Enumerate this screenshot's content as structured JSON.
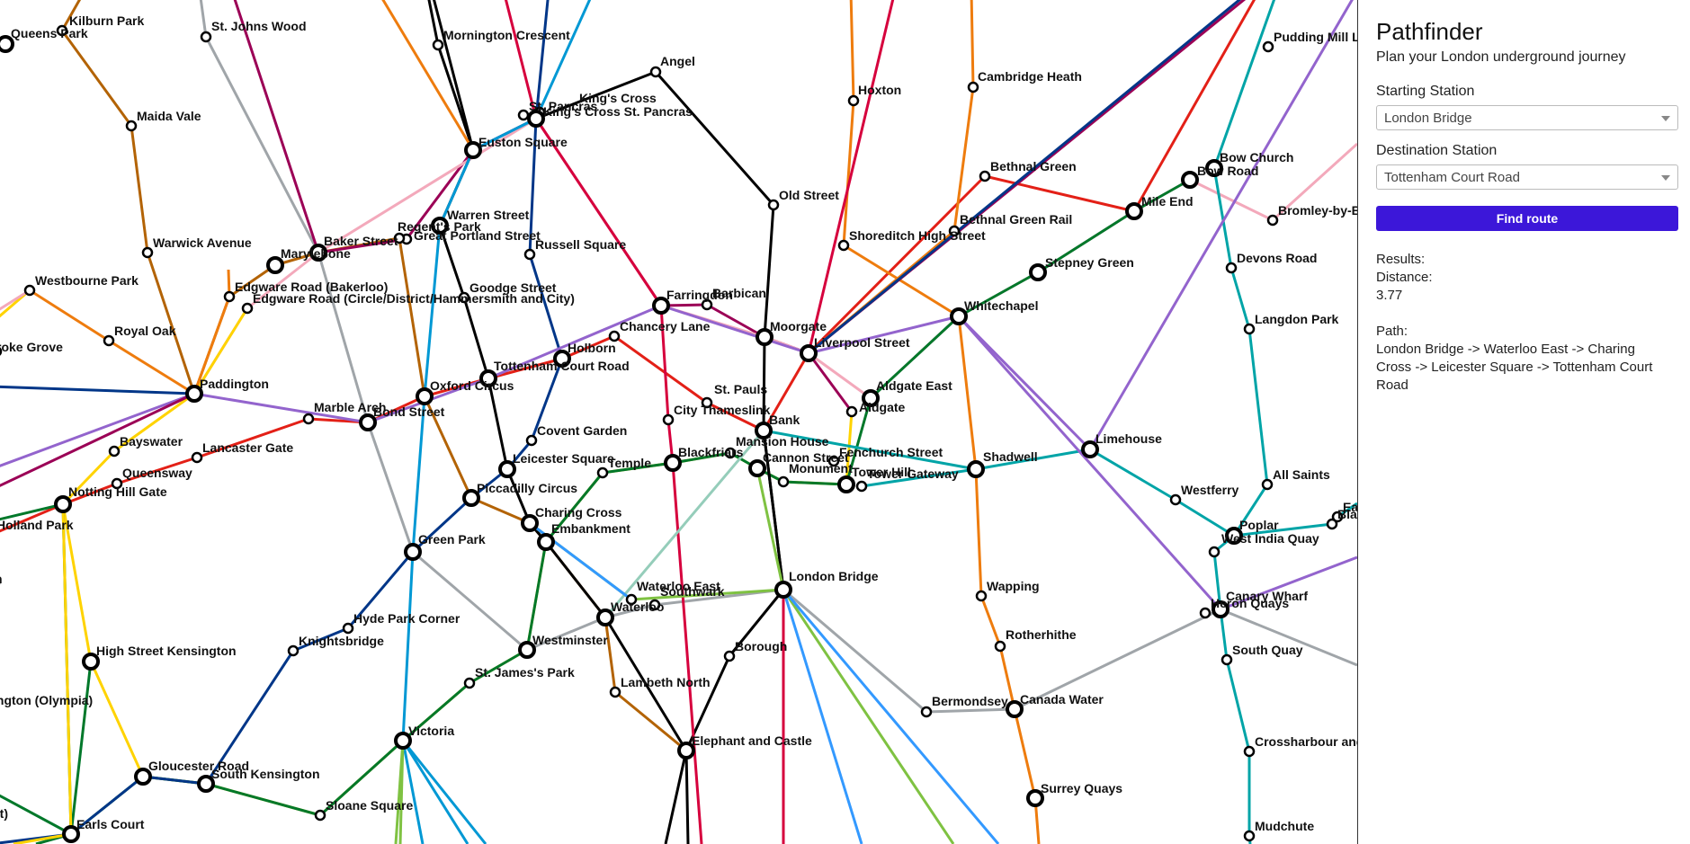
{
  "panel": {
    "title": "Pathfinder",
    "subtitle": "Plan your London underground journey",
    "start_label": "Starting Station",
    "start_value": "London Bridge",
    "dest_label": "Destination Station",
    "dest_value": "Tottenham Court Road",
    "button_label": "Find route",
    "results_label": "Results:",
    "distance_label": "Distance:",
    "distance_value": "3.77",
    "path_label": "Path:",
    "path_value": "London Bridge -> Waterloo East -> Charing Cross -> Leicester Square -> Tottenham Court Road"
  },
  "map": {
    "colors": {
      "bakerloo": "#b36305",
      "central": "#e32017",
      "circle": "#ffd300",
      "district": "#00782a",
      "hammersmith": "#f3a9bb",
      "jubilee": "#a0a5a9",
      "metropolitan": "#9b0056",
      "northern": "#000000",
      "piccadilly": "#003688",
      "victoria": "#0098d4",
      "overground": "#ee7c0e",
      "dlr": "#00a4a7",
      "elizabeth": "#9364cd",
      "thameslink": "#d6003d",
      "southeastern": "#7fc242",
      "waterloo_city": "#95cdba",
      "southern": "#3399ff"
    },
    "stations": [
      {
        "id": "kilburn_park",
        "name": "Kilburn Park",
        "interchange": false
      },
      {
        "id": "queens_park",
        "name": "Queens Park",
        "interchange": true
      },
      {
        "id": "st_johns_wood",
        "name": "St. Johns Wood",
        "interchange": false
      },
      {
        "id": "mornington_crescent",
        "name": "Mornington Crescent",
        "interchange": false
      },
      {
        "id": "angel",
        "name": "Angel",
        "interchange": false
      },
      {
        "id": "hoxton",
        "name": "Hoxton",
        "interchange": false
      },
      {
        "id": "cambridge_heath",
        "name": "Cambridge Heath",
        "interchange": false
      },
      {
        "id": "pudding_mill_lane",
        "name": "Pudding Mill La",
        "interchange": false
      },
      {
        "id": "maida_vale",
        "name": "Maida Vale",
        "interchange": false
      },
      {
        "id": "st_pancras",
        "name": "St. Pancras",
        "interchange": false
      },
      {
        "id": "kings_cross",
        "name": "King's Cross",
        "interchange": false
      },
      {
        "id": "kings_cross_st_pancras",
        "name": "King's Cross St. Pancras",
        "interchange": true
      },
      {
        "id": "euston_square",
        "name": "Euston Square",
        "interchange": true
      },
      {
        "id": "old_street",
        "name": "Old Street",
        "interchange": false
      },
      {
        "id": "bethnal_green",
        "name": "Bethnal Green",
        "interchange": false
      },
      {
        "id": "bow_church",
        "name": "Bow Church",
        "interchange": true
      },
      {
        "id": "bow_road",
        "name": "Bow Road",
        "interchange": true
      },
      {
        "id": "mile_end",
        "name": "Mile End",
        "interchange": true
      },
      {
        "id": "bromley_by_bow",
        "name": "Bromley-by-Bo",
        "interchange": false
      },
      {
        "id": "warren_street",
        "name": "Warren Street",
        "interchange": true
      },
      {
        "id": "great_portland_street",
        "name": "Great Portland Street",
        "interchange": false
      },
      {
        "id": "regents_park",
        "name": "Regent's Park",
        "interchange": false
      },
      {
        "id": "baker_street",
        "name": "Baker Street",
        "interchange": true
      },
      {
        "id": "marylebone",
        "name": "Marylebone",
        "interchange": true
      },
      {
        "id": "warwick_avenue",
        "name": "Warwick Avenue",
        "interchange": false
      },
      {
        "id": "russell_square",
        "name": "Russell Square",
        "interchange": false
      },
      {
        "id": "shoreditch_high_street",
        "name": "Shoreditch High Street",
        "interchange": false
      },
      {
        "id": "bethnal_green_rail",
        "name": "Bethnal Green Rail",
        "interchange": false
      },
      {
        "id": "devons_road",
        "name": "Devons Road",
        "interchange": false
      },
      {
        "id": "westbourne_park",
        "name": "Westbourne Park",
        "interchange": false
      },
      {
        "id": "edgware_road_bakerloo",
        "name": "Edgware Road (Bakerloo)",
        "interchange": false
      },
      {
        "id": "edgware_road_circle",
        "name": "Edgware Road (Circle/District/Hammersmith and City)",
        "interchange": false
      },
      {
        "id": "goodge_street",
        "name": "Goodge Street",
        "interchange": false
      },
      {
        "id": "farringdon",
        "name": "Farringdon",
        "interchange": true
      },
      {
        "id": "barbican",
        "name": "Barbican",
        "interchange": false
      },
      {
        "id": "stepney_green",
        "name": "Stepney Green",
        "interchange": true
      },
      {
        "id": "langdon_park",
        "name": "Langdon Park",
        "interchange": false
      },
      {
        "id": "royal_oak",
        "name": "Royal Oak",
        "interchange": false
      },
      {
        "id": "ladbroke_grove",
        "name": "roke Grove",
        "interchange": false
      },
      {
        "id": "chancery_lane",
        "name": "Chancery Lane",
        "interchange": false
      },
      {
        "id": "whitechapel",
        "name": "Whitechapel",
        "interchange": true
      },
      {
        "id": "moorgate",
        "name": "Moorgate",
        "interchange": true
      },
      {
        "id": "liverpool_street",
        "name": "Liverpool Street",
        "interchange": true
      },
      {
        "id": "holborn",
        "name": "Holborn",
        "interchange": true
      },
      {
        "id": "tottenham_court_road",
        "name": "Tottenham Court Road",
        "interchange": true
      },
      {
        "id": "paddington",
        "name": "Paddington",
        "interchange": true
      },
      {
        "id": "oxford_circus",
        "name": "Oxford Circus",
        "interchange": true
      },
      {
        "id": "st_pauls",
        "name": "St. Pauls",
        "interchange": false
      },
      {
        "id": "aldgate_east",
        "name": "Aldgate East",
        "interchange": true
      },
      {
        "id": "aldgate",
        "name": "Aldgate",
        "interchange": false
      },
      {
        "id": "marble_arch",
        "name": "Marble Arch",
        "interchange": false
      },
      {
        "id": "bond_street",
        "name": "Bond Street",
        "interchange": true
      },
      {
        "id": "city_thameslink",
        "name": "City Thameslink",
        "interchange": false
      },
      {
        "id": "bank",
        "name": "Bank",
        "interchange": true
      },
      {
        "id": "limehouse",
        "name": "Limehouse",
        "interchange": true
      },
      {
        "id": "covent_garden",
        "name": "Covent Garden",
        "interchange": false
      },
      {
        "id": "bayswater",
        "name": "Bayswater",
        "interchange": false
      },
      {
        "id": "lancaster_gate",
        "name": "Lancaster Gate",
        "interchange": false
      },
      {
        "id": "mansion_house",
        "name": "Mansion House",
        "interchange": false
      },
      {
        "id": "fenchurch_street",
        "name": "Fenchurch Street",
        "interchange": false
      },
      {
        "id": "queensway",
        "name": "Queensway",
        "interchange": false
      },
      {
        "id": "leicester_square",
        "name": "Leicester Square",
        "interchange": true
      },
      {
        "id": "temple",
        "name": "Temple",
        "interchange": false
      },
      {
        "id": "blackfriars",
        "name": "Blackfriars",
        "interchange": true
      },
      {
        "id": "cannon_street",
        "name": "Cannon Street",
        "interchange": true
      },
      {
        "id": "shadwell",
        "name": "Shadwell",
        "interchange": true
      },
      {
        "id": "monument",
        "name": "Monument",
        "interchange": false
      },
      {
        "id": "tower_hill",
        "name": "Tower Hill",
        "interchange": true
      },
      {
        "id": "tower_gateway",
        "name": "Tower Gateway",
        "interchange": false
      },
      {
        "id": "all_saints",
        "name": "All Saints",
        "interchange": false
      },
      {
        "id": "notting_hill_gate",
        "name": "Notting Hill Gate",
        "interchange": true
      },
      {
        "id": "piccadilly_circus",
        "name": "Piccadilly Circus",
        "interchange": true
      },
      {
        "id": "westferry",
        "name": "Westferry",
        "interchange": false
      },
      {
        "id": "charing_cross",
        "name": "Charing Cross",
        "interchange": true
      },
      {
        "id": "poplar",
        "name": "Poplar",
        "interchange": true
      },
      {
        "id": "blackwall",
        "name": "Blackwa",
        "interchange": false
      },
      {
        "id": "east_india",
        "name": "Ea",
        "interchange": false
      },
      {
        "id": "holland_park",
        "name": "Holland Park",
        "interchange": false
      },
      {
        "id": "embankment",
        "name": "Embankment",
        "interchange": true
      },
      {
        "id": "west_india_quay",
        "name": "West India Quay",
        "interchange": false
      },
      {
        "id": "green_park",
        "name": "Green Park",
        "interchange": true
      },
      {
        "id": "london_bridge",
        "name": "London Bridge",
        "interchange": true
      },
      {
        "id": "waterloo_east",
        "name": "Waterloo East",
        "interchange": false
      },
      {
        "id": "southwark",
        "name": "Southwark",
        "interchange": false
      },
      {
        "id": "waterloo",
        "name": "Waterloo",
        "interchange": true
      },
      {
        "id": "canary_wharf",
        "name": "Canary Wharf",
        "interchange": true
      },
      {
        "id": "heron_quays",
        "name": "Heron Quays",
        "interchange": false
      },
      {
        "id": "hyde_park_corner",
        "name": "Hyde Park Corner",
        "interchange": false
      },
      {
        "id": "wapping",
        "name": "Wapping",
        "interchange": false
      },
      {
        "id": "westminster",
        "name": "Westminster",
        "interchange": true
      },
      {
        "id": "knightsbridge",
        "name": "Knightsbridge",
        "interchange": false
      },
      {
        "id": "borough",
        "name": "Borough",
        "interchange": false
      },
      {
        "id": "rotherhithe",
        "name": "Rotherhithe",
        "interchange": false
      },
      {
        "id": "high_street_kensington",
        "name": "High Street Kensington",
        "interchange": true
      },
      {
        "id": "south_quay",
        "name": "South Quay",
        "interchange": false
      },
      {
        "id": "st_jamess_park",
        "name": "St. James's Park",
        "interchange": false
      },
      {
        "id": "lambeth_north",
        "name": "Lambeth North",
        "interchange": false
      },
      {
        "id": "kensington_olympia",
        "name": "ington (Olympia)",
        "interchange": false
      },
      {
        "id": "bermondsey",
        "name": "Bermondsey",
        "interchange": false
      },
      {
        "id": "canada_water",
        "name": "Canada Water",
        "interchange": true
      },
      {
        "id": "victoria",
        "name": "Victoria",
        "interchange": true
      },
      {
        "id": "elephant_and_castle",
        "name": "Elephant and Castle",
        "interchange": true
      },
      {
        "id": "crossharbour",
        "name": "Crossharbour and",
        "interchange": false
      },
      {
        "id": "gloucester_road",
        "name": "Gloucester Road",
        "interchange": true
      },
      {
        "id": "south_kensington",
        "name": "South Kensington",
        "interchange": true
      },
      {
        "id": "surrey_quays",
        "name": "Surrey Quays",
        "interchange": true
      },
      {
        "id": "sloane_square",
        "name": "Sloane Square",
        "interchange": false
      },
      {
        "id": "earls_court",
        "name": "Earls Court",
        "interchange": true
      },
      {
        "id": "mudchute",
        "name": "Mudchute",
        "interchange": false
      },
      {
        "id": "ict",
        "name": "ict)",
        "interchange": false
      },
      {
        "id": "h_edge",
        "name": "h",
        "interchange": false
      }
    ]
  }
}
